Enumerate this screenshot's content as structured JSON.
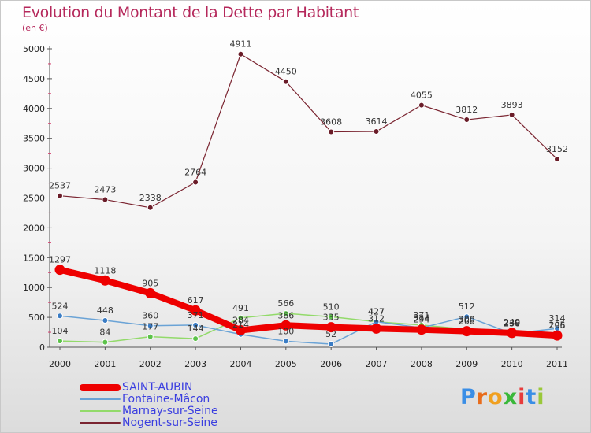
{
  "title": "Evolution du Montant de la Dette par Habitant",
  "subtitle": "(en €)",
  "logo": {
    "letters": [
      "P",
      "r",
      "o",
      "x",
      "i",
      "t",
      "i"
    ],
    "colors": [
      "#3a8ee6",
      "#e86c1c",
      "#f0a020",
      "#3ab83a",
      "#e83c3c",
      "#3a8ee6",
      "#9ac83a"
    ]
  },
  "chart_data": {
    "type": "line",
    "title": "Evolution du Montant de la Dette par Habitant",
    "subtitle": "(en €)",
    "x": [
      "2000",
      "2001",
      "2002",
      "2003",
      "2004",
      "2005",
      "2006",
      "2007",
      "2008",
      "2009",
      "2010",
      "2011"
    ],
    "ylim": [
      0,
      5000
    ],
    "yticks": [
      0,
      500,
      1000,
      1500,
      2000,
      2500,
      3000,
      3500,
      4000,
      4500,
      5000
    ],
    "grid": false,
    "legend_position": "bottom-left",
    "series": [
      {
        "name": "SAINT-AUBIN",
        "color": "#ee0000",
        "width": 8,
        "marker_fill": "#ee0000",
        "marker_stroke": "#ee0000",
        "marker_r": 6,
        "show_labels": true,
        "values": [
          1297,
          1118,
          905,
          617,
          284,
          366,
          335,
          312,
          294,
          268,
          239,
          196
        ]
      },
      {
        "name": "Fontaine-Mâcon",
        "color": "#6aa3d6",
        "width": 1.5,
        "marker_fill": "#3a7cc4",
        "marker_stroke": "#ffffff",
        "marker_r": 3.5,
        "show_labels": true,
        "values": [
          524,
          448,
          360,
          371,
          214,
          100,
          52,
          427,
          324,
          512,
          230,
          314
        ]
      },
      {
        "name": "Marnay-sur-Seine",
        "color": "#92da6a",
        "width": 1.5,
        "marker_fill": "#5cc24a",
        "marker_stroke": "#ffffff",
        "marker_r": 3.5,
        "show_labels": true,
        "values": [
          104,
          84,
          177,
          144,
          491,
          566,
          510,
          427,
          371,
          300,
          249,
          205
        ]
      },
      {
        "name": "Nogent-sur-Seine",
        "color": "#7a2430",
        "width": 1.2,
        "marker_fill": "#6a1c28",
        "marker_stroke": "#ffffff",
        "marker_r": 3.5,
        "show_labels": true,
        "values": [
          2537,
          2473,
          2338,
          2764,
          4911,
          4450,
          3608,
          3614,
          4055,
          3812,
          3893,
          3152
        ]
      }
    ]
  }
}
